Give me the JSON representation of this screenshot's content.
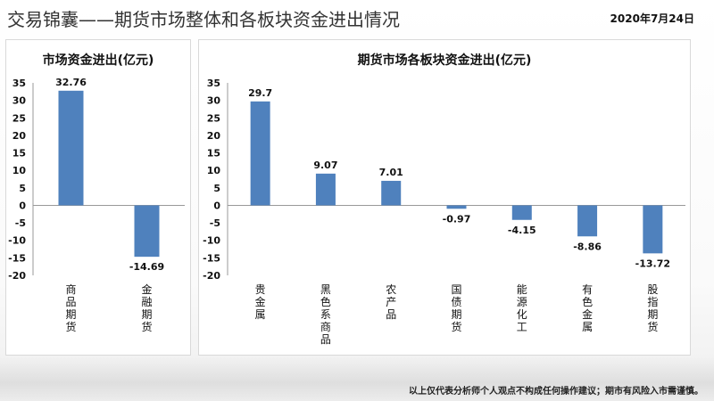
{
  "header": {
    "title": "交易锦囊——期货市场整体和各板块资金进出情况",
    "date": "2020年7月24日"
  },
  "footer": {
    "disclaimer": "以上仅代表分析师个人观点不构成任何操作建议；期市有风险入市需谨慎。"
  },
  "colors": {
    "bar": "#4f81bd",
    "axis": "#999999"
  },
  "chart_data": [
    {
      "type": "bar",
      "title": "市场资金进出(亿元)",
      "categories": [
        "商品期货",
        "金融期货"
      ],
      "values": [
        32.76,
        -14.69
      ],
      "data_labels": [
        "32.76",
        "-14.69"
      ],
      "ylim": [
        -20,
        35
      ],
      "yticks": [
        35,
        30,
        25,
        20,
        15,
        10,
        5,
        0,
        -5,
        -10,
        -15,
        -20
      ],
      "grid": false,
      "legend": "none"
    },
    {
      "type": "bar",
      "title": "期货市场各板块资金进出(亿元)",
      "categories": [
        "贵金属",
        "黑色系商品",
        "农产品",
        "国债期货",
        "能源化工",
        "有色金属",
        "股指期货"
      ],
      "values": [
        29.7,
        9.07,
        7.01,
        -0.97,
        -4.15,
        -8.86,
        -13.72
      ],
      "data_labels": [
        "29.7",
        "9.07",
        "7.01",
        "-0.97",
        "-4.15",
        "-8.86",
        "-13.72"
      ],
      "ylim": [
        -20,
        35
      ],
      "yticks": [
        35,
        30,
        25,
        20,
        15,
        10,
        5,
        0,
        -5,
        -10,
        -15,
        -20
      ],
      "grid": false,
      "legend": "none"
    }
  ]
}
